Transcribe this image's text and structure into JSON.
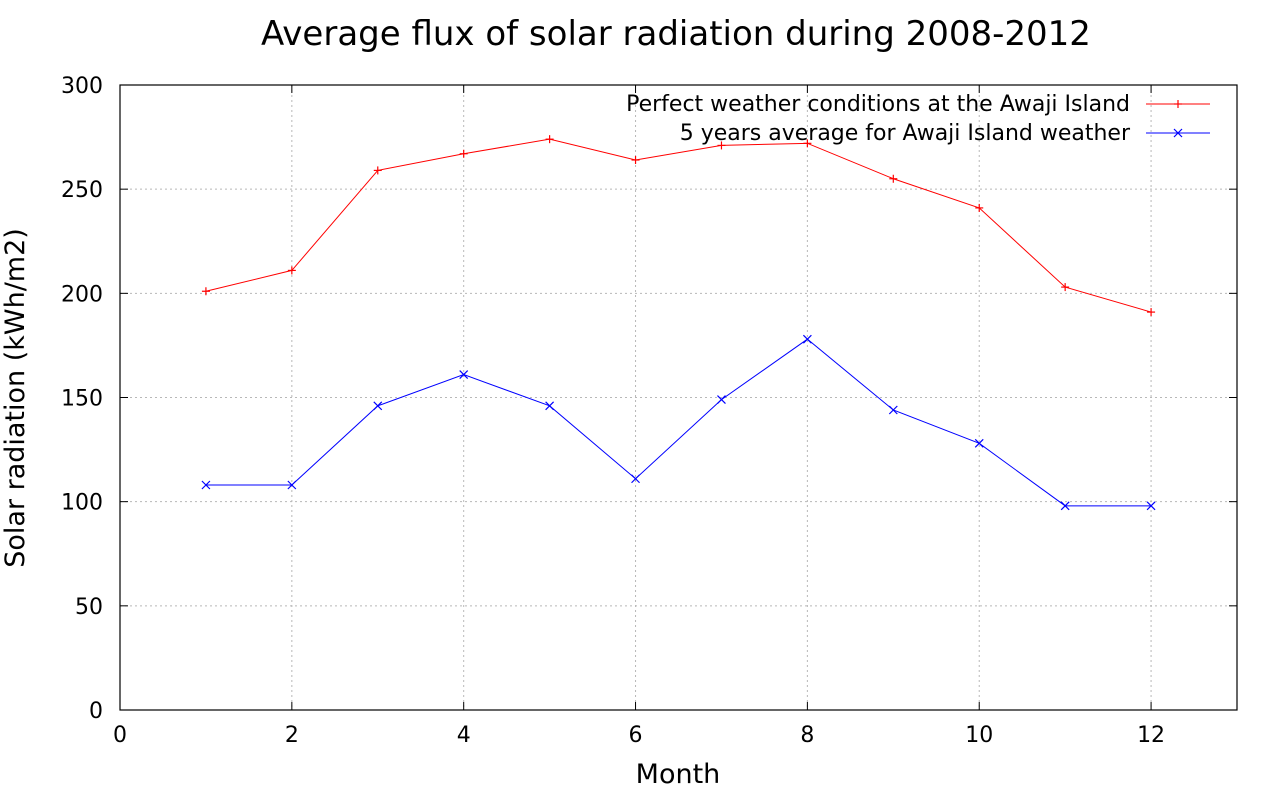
{
  "chart_data": {
    "type": "line",
    "title": "Average flux of solar radiation during 2008-2012",
    "xlabel": "Month",
    "ylabel": "Solar radiation (kWh/m2)",
    "xlim": [
      0,
      13
    ],
    "ylim": [
      0,
      300
    ],
    "x_ticks": [
      0,
      2,
      4,
      6,
      8,
      10,
      12
    ],
    "y_ticks": [
      0,
      50,
      100,
      150,
      200,
      250,
      300
    ],
    "x_tick_labels": [
      "0",
      "2",
      "4",
      "6",
      "8",
      "10",
      "12"
    ],
    "y_tick_labels": [
      "0",
      "50",
      "100",
      "150",
      "200",
      "250",
      "300"
    ],
    "grid": true,
    "legend_position": "top-right",
    "x": [
      1,
      2,
      3,
      4,
      5,
      6,
      7,
      8,
      9,
      10,
      11,
      12
    ],
    "series": [
      {
        "name": "Perfect weather conditions at the Awaji Island",
        "color": "#ff0000",
        "marker": "plus",
        "values": [
          201,
          211,
          259,
          267,
          274,
          264,
          271,
          272,
          255,
          241,
          203,
          191
        ]
      },
      {
        "name": "5 years average for Awaji Island weather",
        "color": "#0000ff",
        "marker": "cross",
        "values": [
          108,
          108,
          146,
          161,
          146,
          111,
          149,
          178,
          144,
          128,
          98,
          98
        ]
      }
    ]
  }
}
